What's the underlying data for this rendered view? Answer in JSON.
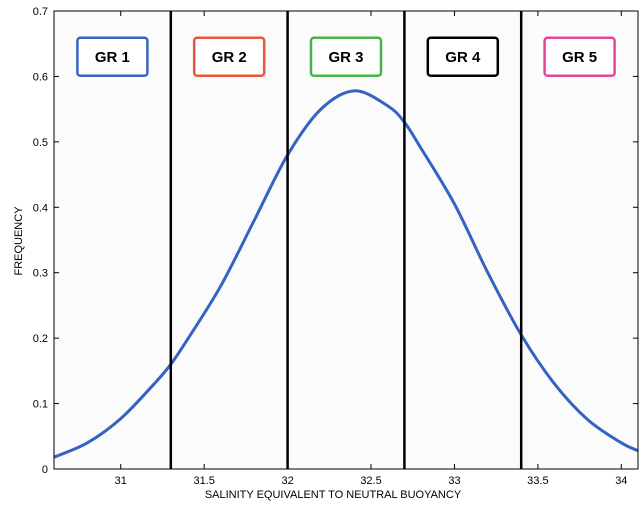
{
  "chart_data": {
    "type": "line",
    "title": "",
    "xlabel": "SALINITY EQUIVALENT TO NEUTRAL BUOYANCY",
    "ylabel": "FREQUENCY",
    "xlim": [
      30.6,
      34.1
    ],
    "ylim": [
      0,
      0.7
    ],
    "xticks": [
      31,
      31.5,
      32,
      32.5,
      33,
      33.5,
      34
    ],
    "xtick_labels": [
      "31",
      "31.5",
      "32",
      "32.5",
      "33",
      "33.5",
      "34"
    ],
    "yticks": [
      0,
      0.1,
      0.2,
      0.3,
      0.4,
      0.5,
      0.6,
      0.7
    ],
    "ytick_labels": [
      "0",
      "0.1",
      "0.2",
      "0.3",
      "0.4",
      "0.5",
      "0.6",
      "0.7"
    ],
    "grid": false,
    "series": [
      {
        "color": "#3563c1",
        "x": [
          30.6,
          30.8,
          31.0,
          31.2,
          31.3,
          31.4,
          31.6,
          31.8,
          32.0,
          32.2,
          32.4,
          32.6,
          32.7,
          32.8,
          33.0,
          33.2,
          33.4,
          33.6,
          33.8,
          34.0,
          34.1
        ],
        "y": [
          0.018,
          0.04,
          0.077,
          0.13,
          0.16,
          0.198,
          0.28,
          0.38,
          0.48,
          0.55,
          0.578,
          0.555,
          0.53,
          0.49,
          0.405,
          0.3,
          0.205,
          0.13,
          0.075,
          0.04,
          0.028
        ]
      }
    ],
    "vertical_lines": [
      31.3,
      32.0,
      32.7,
      33.4
    ],
    "group_labels": [
      {
        "text": "GR 1",
        "x_center": 30.95,
        "color": "#3563c1"
      },
      {
        "text": "GR 2",
        "x_center": 31.65,
        "color": "#e8573a"
      },
      {
        "text": "GR 3",
        "x_center": 32.35,
        "color": "#48b348"
      },
      {
        "text": "GR 4",
        "x_center": 33.05,
        "color": "#000000"
      },
      {
        "text": "GR 5",
        "x_center": 33.75,
        "color": "#e0479a"
      }
    ],
    "group_label_y": 0.63
  }
}
